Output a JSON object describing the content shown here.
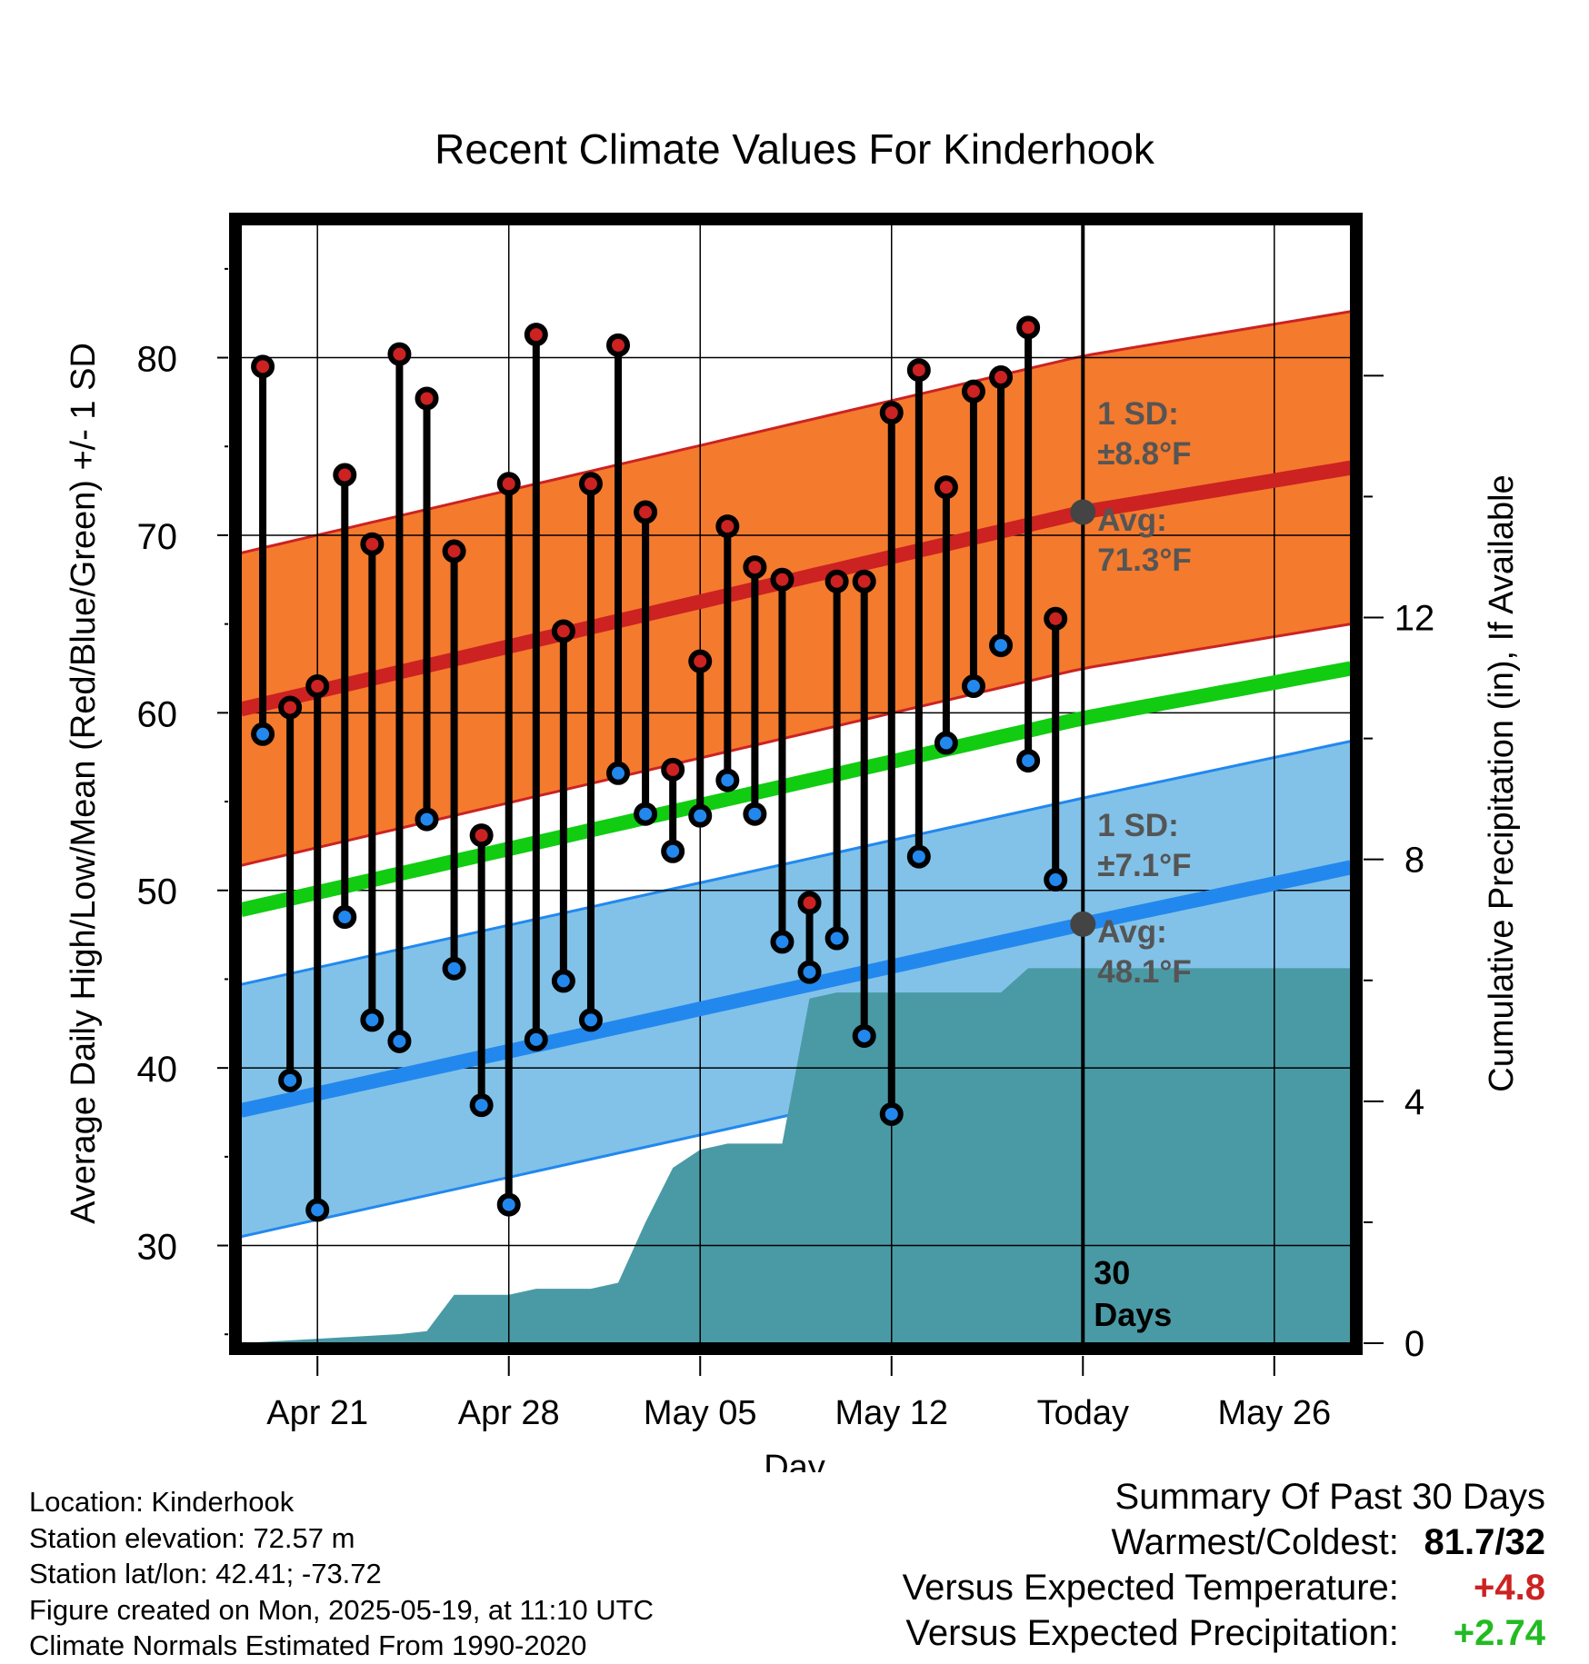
{
  "chart_data": {
    "type": "line",
    "title": "Recent Climate Values For Kinderhook",
    "xlabel": "Day",
    "ylabel": "Average Daily High/Low/Mean (Red/Blue/Green) +/- 1 SD",
    "y2label": "Cumulative Precipitation (in), If Available",
    "ylim": [
      24.5,
      87.5
    ],
    "y2lim": [
      0,
      18.5
    ],
    "y_ticks": [
      30,
      40,
      50,
      60,
      70,
      80
    ],
    "y2_ticks": [
      0,
      4,
      8,
      12
    ],
    "x_ticks": [
      {
        "day": 21,
        "label": "Apr 21"
      },
      {
        "day": 28,
        "label": "Apr 28"
      },
      {
        "day": 35,
        "label": "May 05"
      },
      {
        "day": 42,
        "label": "May 12"
      },
      {
        "day": 49,
        "label": "Today"
      },
      {
        "day": 56,
        "label": "May 26"
      }
    ],
    "x_note": "day numbers are days of April (May 1 = 31)",
    "xlim": [
      18.2,
      58.8
    ],
    "grid": true,
    "today_day": 49,
    "today_label": "30 Days",
    "normals": {
      "high_avg": [
        {
          "day": 18.2,
          "value": 60.2
        },
        {
          "day": 49,
          "value": 71.3
        },
        {
          "day": 58.8,
          "value": 73.8
        }
      ],
      "high_sd": 8.8,
      "low_avg": [
        {
          "day": 18.2,
          "value": 37.6
        },
        {
          "day": 49,
          "value": 48.1
        },
        {
          "day": 58.8,
          "value": 51.3
        }
      ],
      "low_sd": 7.1,
      "mean_avg": [
        {
          "day": 18.2,
          "value": 48.9
        },
        {
          "day": 49,
          "value": 59.7
        },
        {
          "day": 58.8,
          "value": 62.5
        }
      ]
    },
    "annotations": {
      "high_sd_label": "1 SD:",
      "high_sd_value": "±8.8°F",
      "high_avg_label": "Avg:",
      "high_avg_value": "71.3°F",
      "low_sd_label": "1 SD:",
      "low_sd_value": "±7.1°F",
      "low_avg_label": "Avg:",
      "low_avg_value": "48.1°F"
    },
    "daily": [
      {
        "day": 19,
        "high": 79.5,
        "low": 58.8
      },
      {
        "day": 20,
        "high": 60.3,
        "low": 39.3
      },
      {
        "day": 21,
        "high": 61.5,
        "low": 32.0
      },
      {
        "day": 22,
        "high": 73.4,
        "low": 48.5
      },
      {
        "day": 23,
        "high": 69.5,
        "low": 42.7
      },
      {
        "day": 24,
        "high": 80.2,
        "low": 41.5
      },
      {
        "day": 25,
        "high": 77.7,
        "low": 54.0
      },
      {
        "day": 26,
        "high": 69.1,
        "low": 45.6
      },
      {
        "day": 27,
        "high": 53.1,
        "low": 37.9
      },
      {
        "day": 28,
        "high": 72.9,
        "low": 32.3
      },
      {
        "day": 29,
        "high": 81.3,
        "low": 41.6
      },
      {
        "day": 30,
        "high": 64.6,
        "low": 44.9
      },
      {
        "day": 31,
        "high": 72.9,
        "low": 42.7
      },
      {
        "day": 32,
        "high": 80.7,
        "low": 56.6
      },
      {
        "day": 33,
        "high": 71.3,
        "low": 54.3
      },
      {
        "day": 34,
        "high": 56.8,
        "low": 52.2
      },
      {
        "day": 35,
        "high": 62.9,
        "low": 54.2
      },
      {
        "day": 36,
        "high": 70.5,
        "low": 56.2
      },
      {
        "day": 37,
        "high": 68.2,
        "low": 54.3
      },
      {
        "day": 38,
        "high": 67.5,
        "low": 47.1
      },
      {
        "day": 39,
        "high": 49.3,
        "low": 45.4
      },
      {
        "day": 40,
        "high": 67.4,
        "low": 47.3
      },
      {
        "day": 41,
        "high": 67.4,
        "low": 41.8
      },
      {
        "day": 42,
        "high": 76.9,
        "low": 37.4
      },
      {
        "day": 43,
        "high": 79.3,
        "low": 51.9
      },
      {
        "day": 44,
        "high": 72.7,
        "low": 58.3
      },
      {
        "day": 45,
        "high": 78.1,
        "low": 61.5
      },
      {
        "day": 46,
        "high": 78.9,
        "low": 63.8
      },
      {
        "day": 47,
        "high": 81.7,
        "low": 57.3
      },
      {
        "day": 48,
        "high": 65.3,
        "low": 50.6
      }
    ],
    "precip_cumulative": [
      {
        "day": 18.2,
        "value": 0.0
      },
      {
        "day": 24.0,
        "value": 0.15
      },
      {
        "day": 25.0,
        "value": 0.2
      },
      {
        "day": 26.0,
        "value": 0.8
      },
      {
        "day": 28.0,
        "value": 0.8
      },
      {
        "day": 29.0,
        "value": 0.9
      },
      {
        "day": 31.0,
        "value": 0.9
      },
      {
        "day": 32.0,
        "value": 1.0
      },
      {
        "day": 33.0,
        "value": 2.0
      },
      {
        "day": 34.0,
        "value": 2.9
      },
      {
        "day": 35.0,
        "value": 3.2
      },
      {
        "day": 36.0,
        "value": 3.3
      },
      {
        "day": 38.0,
        "value": 3.3
      },
      {
        "day": 39.0,
        "value": 5.7
      },
      {
        "day": 40.0,
        "value": 5.8
      },
      {
        "day": 44.0,
        "value": 5.8
      },
      {
        "day": 46.0,
        "value": 5.8
      },
      {
        "day": 47.0,
        "value": 6.2
      },
      {
        "day": 58.8,
        "value": 6.2
      }
    ],
    "colors": {
      "high_band": "#f47a2d",
      "high_line": "#cc2222",
      "low_band": "#82c2e8",
      "low_line": "#2288ee",
      "mean_line": "#11cc11",
      "precip": "#4a9aa5",
      "high_dot": "#cc2222",
      "low_dot": "#2288ee",
      "annotation": "#555555"
    }
  },
  "footer": {
    "location": "Location: Kinderhook",
    "elevation": "Station elevation: 72.57 m",
    "latlon": "Station lat/lon: 42.41; -73.72",
    "created": "Figure created on Mon, 2025-05-19, at 11:10 UTC",
    "normals": "Climate Normals Estimated From 1990-2020"
  },
  "summary": {
    "title": "Summary Of Past 30 Days",
    "warmest_label": "Warmest/Coldest:",
    "warmest_value": "81.7/32",
    "temp_label": "Versus Expected Temperature:",
    "temp_value": "+4.8",
    "temp_color": "#cc2222",
    "precip_label": "Versus Expected Precipitation:",
    "precip_value": "+2.74",
    "precip_color": "#22bb22"
  }
}
